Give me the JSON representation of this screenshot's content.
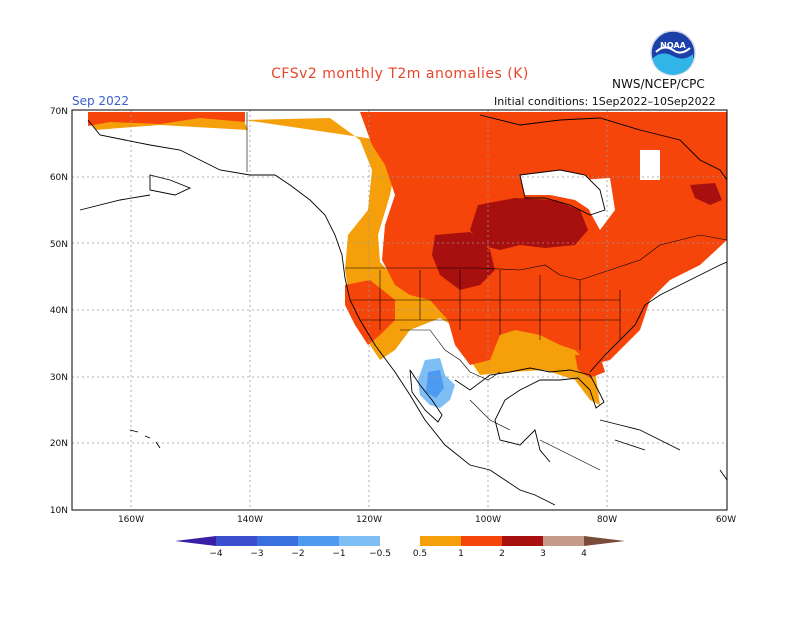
{
  "header": {
    "title": "CFSv2 monthly T2m anomalies (K)",
    "org": "NWS/NCEP/CPC",
    "period": "Sep 2022",
    "initial_conditions": "Initial conditions: 1Sep2022–10Sep2022"
  },
  "logo": {
    "icon": "noaa-logo-icon",
    "text": "NOAA"
  },
  "axes": {
    "lat_labels": [
      "70N",
      "60N",
      "50N",
      "40N",
      "30N",
      "20N",
      "10N"
    ],
    "lon_labels": [
      "160W",
      "140W",
      "120W",
      "100W",
      "80W",
      "60W"
    ]
  },
  "colorbar": {
    "ticks": [
      "−4",
      "−3",
      "−2",
      "−1",
      "−0.5",
      "0.5",
      "1",
      "2",
      "3",
      "4"
    ],
    "colors": [
      "#3a1ea6",
      "#3c4fcf",
      "#3a6fe0",
      "#4d9bf0",
      "#7fbef5",
      "#ffffff",
      "#f5a00a",
      "#f5450a",
      "#a80f0f",
      "#c49a8a",
      "#7a4a3a"
    ]
  },
  "map_colors": {
    "ocean": "#ffffff",
    "anomaly_0_5_to_1": "#f5a00a",
    "anomaly_1_to_2": "#f5450a",
    "anomaly_2_to_3": "#a80f0f",
    "anomaly_neg_0_5_to_1": "#7fbef5",
    "anomaly_neg_1_to_2": "#4d9bf0"
  }
}
